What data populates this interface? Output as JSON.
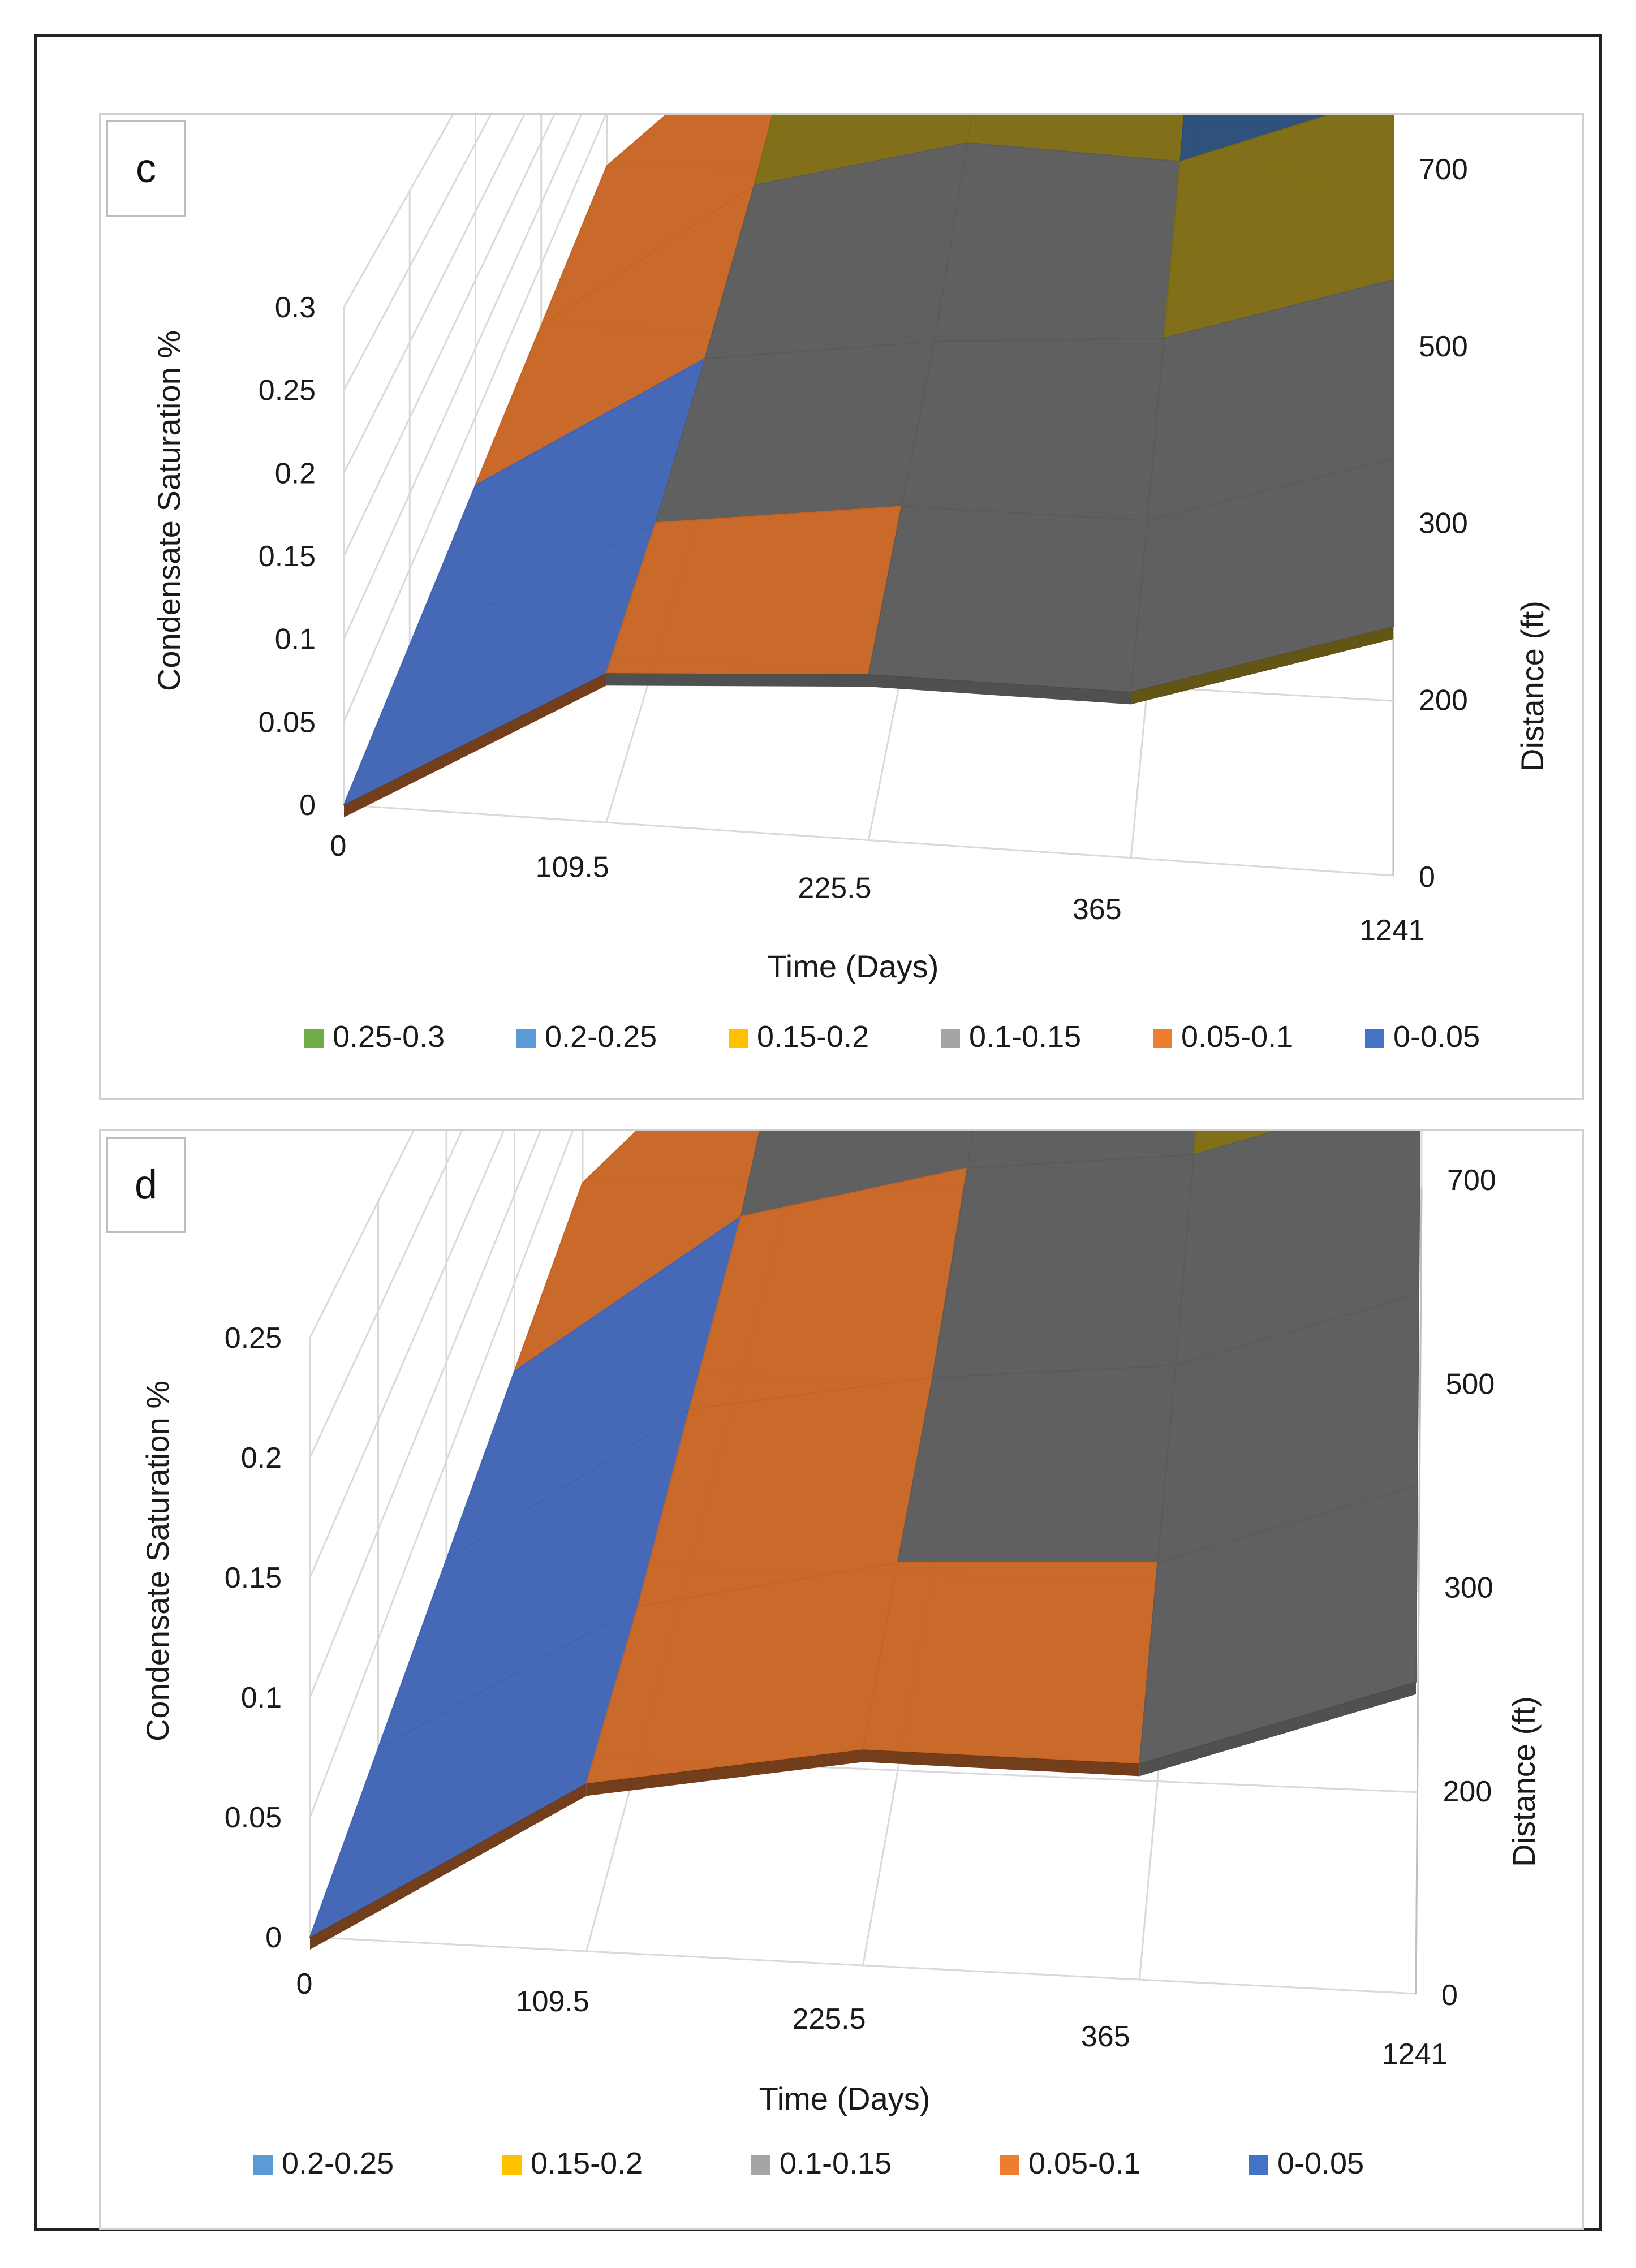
{
  "chart_data": [
    {
      "type": "surface",
      "panel": "c",
      "xlabel": "Time (Days)",
      "ylabel": "Condensate Saturation %",
      "zlabel": "Distance (ft)",
      "x_ticks": [
        "0",
        "109.5",
        "225.5",
        "365",
        "1241"
      ],
      "depth_ticks": [
        "0",
        "200",
        "300",
        "500",
        "700"
      ],
      "y_ticks": [
        "0",
        "0.05",
        "0.1",
        "0.15",
        "0.2",
        "0.25",
        "0.3"
      ],
      "ylim": [
        0,
        0.3
      ],
      "series": [
        {
          "name": "Distance 0 ft",
          "values": [
            0,
            0.09,
            0.1,
            0.1,
            0.15
          ]
        },
        {
          "name": "Distance 200 ft",
          "values": [
            0,
            0.09,
            0.11,
            0.11,
            0.16
          ]
        },
        {
          "name": "Distance 300 ft",
          "values": [
            0,
            0.1,
            0.12,
            0.13,
            0.18
          ]
        },
        {
          "name": "Distance 500 ft",
          "values": [
            0,
            0.12,
            0.16,
            0.15,
            0.21
          ]
        },
        {
          "name": "Distance 700 ft",
          "values": [
            0,
            0.16,
            0.2,
            0.2,
            0.25
          ]
        }
      ],
      "legend": [
        {
          "label": "0.25-0.3",
          "color": "#70ad47"
        },
        {
          "label": "0.2-0.25",
          "color": "#5b9bd5"
        },
        {
          "label": "0.15-0.2",
          "color": "#ffc000"
        },
        {
          "label": "0.1-0.15",
          "color": "#a5a5a5"
        },
        {
          "label": "0.05-0.1",
          "color": "#ed7d31"
        },
        {
          "label": "0-0.05",
          "color": "#4472c4"
        }
      ]
    },
    {
      "type": "surface",
      "panel": "d",
      "xlabel": "Time (Days)",
      "ylabel": "Condensate Saturation %",
      "zlabel": "Distance (ft)",
      "x_ticks": [
        "0",
        "109.5",
        "225.5",
        "365",
        "1241"
      ],
      "depth_ticks": [
        "0",
        "200",
        "300",
        "500",
        "700"
      ],
      "y_ticks": [
        "0",
        "0.05",
        "0.1",
        "0.15",
        "0.2",
        "0.25"
      ],
      "ylim": [
        0,
        0.25
      ],
      "series": [
        {
          "name": "Distance 0 ft",
          "values": [
            0,
            0.07,
            0.09,
            0.09,
            0.13
          ]
        },
        {
          "name": "Distance 200 ft",
          "values": [
            0,
            0.07,
            0.095,
            0.1,
            0.14
          ]
        },
        {
          "name": "Distance 300 ft",
          "values": [
            0,
            0.08,
            0.1,
            0.11,
            0.15
          ]
        },
        {
          "name": "Distance 500 ft",
          "values": [
            0,
            0.09,
            0.12,
            0.13,
            0.17
          ]
        },
        {
          "name": "Distance 700 ft",
          "values": [
            0,
            0.13,
            0.16,
            0.16,
            0.2
          ]
        }
      ],
      "legend": [
        {
          "label": "0.2-0.25",
          "color": "#5b9bd5"
        },
        {
          "label": "0.15-0.2",
          "color": "#ffc000"
        },
        {
          "label": "0.1-0.15",
          "color": "#a5a5a5"
        },
        {
          "label": "0.05-0.1",
          "color": "#ed7d31"
        },
        {
          "label": "0-0.05",
          "color": "#4472c4"
        }
      ]
    }
  ]
}
